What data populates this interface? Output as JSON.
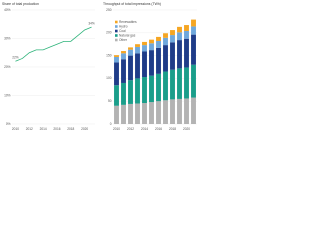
{
  "chart_data": [
    {
      "type": "line",
      "title": "Share of total production",
      "x": [
        2010,
        2011,
        2012,
        2013,
        2014,
        2015,
        2016,
        2017,
        2018,
        2019,
        2020,
        2021
      ],
      "xlim": [
        2009.5,
        2021.5
      ],
      "xticks": [
        2010,
        2012,
        2014,
        2016,
        2018,
        2020
      ],
      "series": [
        {
          "name": "Share",
          "color": "#2db37a",
          "values": [
            22,
            23,
            25,
            26,
            26,
            27,
            28,
            29,
            29,
            31,
            33,
            34
          ],
          "value_labels": [
            "22%",
            null,
            null,
            null,
            null,
            null,
            null,
            null,
            null,
            null,
            null,
            "34%"
          ]
        }
      ],
      "ylim": [
        0,
        40
      ],
      "yticks": [
        {
          "value": 0,
          "label": "0%"
        },
        {
          "value": 10,
          "label": "10%"
        },
        {
          "value": 20,
          "label": "20%"
        },
        {
          "value": 30,
          "label": "30%"
        },
        {
          "value": 40,
          "label": "40%"
        }
      ],
      "grid": true
    },
    {
      "type": "stacked-bar",
      "title": "Throughput of total impressions (TWh)",
      "categories": [
        "2010",
        null,
        "2012",
        null,
        "2014",
        null,
        "2016",
        null,
        "2018",
        null,
        "2020",
        null
      ],
      "series": [
        {
          "name": "Other",
          "color": "#b3b3b3",
          "values": [
            40,
            42,
            44,
            45,
            46,
            48,
            50,
            52,
            54,
            55,
            56,
            58
          ]
        },
        {
          "name": "Natural gas",
          "color": "#1a9e8a",
          "values": [
            45,
            48,
            52,
            55,
            57,
            58,
            60,
            63,
            65,
            67,
            68,
            72
          ]
        },
        {
          "name": "Coal",
          "color": "#1f3c88",
          "values": [
            50,
            52,
            54,
            55,
            56,
            56,
            57,
            58,
            60,
            62,
            63,
            66
          ]
        },
        {
          "name": "Hydro",
          "color": "#6fa8dc",
          "values": [
            12,
            13,
            13,
            14,
            14,
            15,
            15,
            16,
            16,
            17,
            17,
            18
          ]
        },
        {
          "name": "Renewables",
          "color": "#f5a623",
          "values": [
            4,
            5,
            5,
            6,
            7,
            8,
            9,
            10,
            11,
            12,
            13,
            15
          ]
        }
      ],
      "ylim": [
        0,
        250
      ],
      "yticks": [
        0,
        50,
        100,
        150,
        200,
        250
      ],
      "grid": true,
      "legend": "top-left"
    }
  ]
}
